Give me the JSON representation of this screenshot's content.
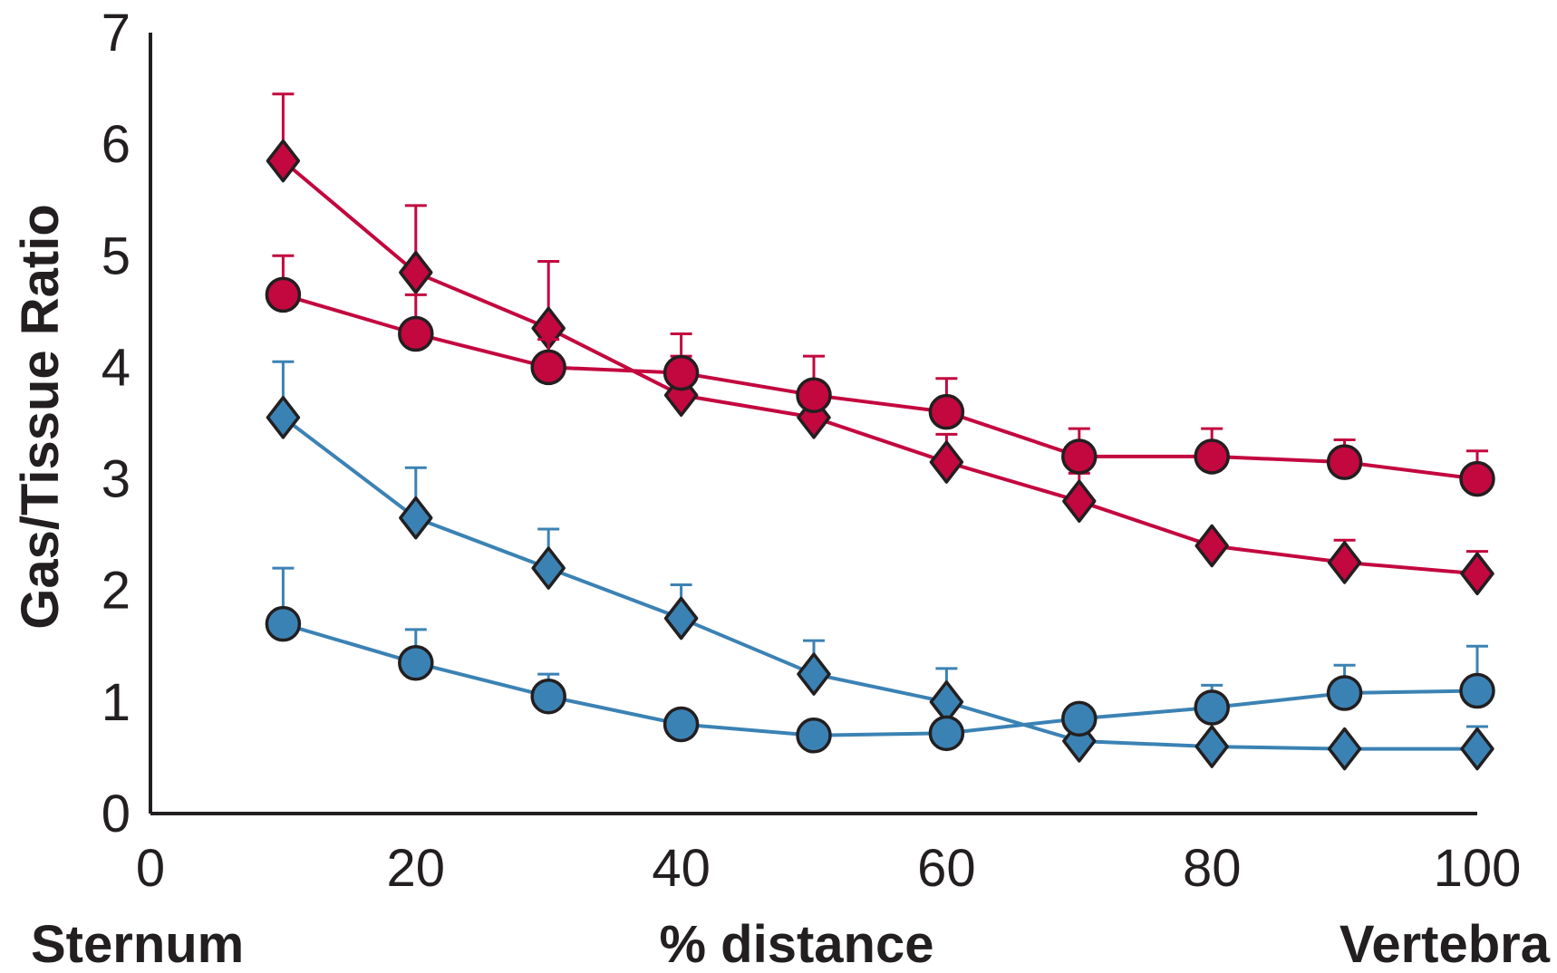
{
  "chart_data": {
    "type": "line",
    "title": "",
    "xlabel": "% distance",
    "ylabel": "Gas/Tissue Ratio",
    "x_end_labels": {
      "left": "Sternum",
      "right": "Vertebra"
    },
    "xlim": [
      0,
      100
    ],
    "ylim": [
      0,
      7
    ],
    "x_ticks": [
      "0",
      "20",
      "40",
      "60",
      "80",
      "100"
    ],
    "y_ticks": [
      "0",
      "1",
      "2",
      "3",
      "4",
      "5",
      "6",
      "7"
    ],
    "grid": false,
    "legend": "none",
    "x": [
      10,
      20,
      30,
      40,
      50,
      60,
      70,
      80,
      90,
      100
    ],
    "series": [
      {
        "marker": "diamond",
        "color": "#c3073f",
        "values": [
          5.85,
          4.85,
          4.35,
          3.75,
          3.55,
          3.15,
          2.8,
          2.4,
          2.25,
          2.15
        ],
        "error": [
          0.6,
          0.6,
          0.6,
          0.35,
          0.2,
          0.25,
          0.25,
          0.0,
          0.2,
          0.2
        ]
      },
      {
        "marker": "circle",
        "color": "#c3073f",
        "values": [
          4.65,
          4.3,
          4.0,
          3.95,
          3.75,
          3.6,
          3.2,
          3.2,
          3.15,
          3.0
        ],
        "error": [
          0.35,
          0.35,
          0.25,
          0.35,
          0.35,
          0.3,
          0.25,
          0.25,
          0.2,
          0.25
        ]
      },
      {
        "marker": "diamond",
        "color": "#3b82b4",
        "values": [
          3.55,
          2.65,
          2.2,
          1.75,
          1.25,
          1.0,
          0.65,
          0.6,
          0.58,
          0.58
        ],
        "error": [
          0.5,
          0.45,
          0.35,
          0.3,
          0.3,
          0.3,
          0.0,
          0.0,
          0.0,
          0.2
        ]
      },
      {
        "marker": "circle",
        "color": "#3b82b4",
        "values": [
          1.7,
          1.35,
          1.05,
          0.8,
          0.7,
          0.72,
          0.85,
          0.95,
          1.08,
          1.1
        ],
        "error": [
          0.5,
          0.3,
          0.2,
          0.0,
          0.0,
          0.0,
          0.0,
          0.2,
          0.25,
          0.4
        ]
      }
    ]
  }
}
